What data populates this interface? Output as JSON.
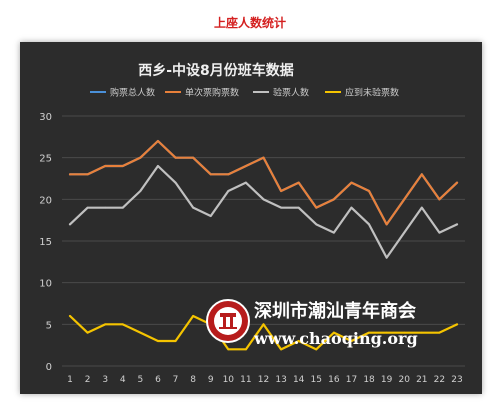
{
  "page": {
    "title": "上座人数统计"
  },
  "chart_data": {
    "type": "line",
    "title": "西乡-中设8月份班车数据",
    "xlabel": "",
    "ylabel": "",
    "categories": [
      1,
      2,
      3,
      4,
      5,
      6,
      7,
      8,
      9,
      10,
      11,
      12,
      13,
      14,
      15,
      16,
      17,
      18,
      19,
      20,
      21,
      22,
      23
    ],
    "ylim": [
      0,
      30
    ],
    "yticks": [
      0,
      5,
      10,
      15,
      20,
      25,
      30
    ],
    "grid": true,
    "legend_position": "top",
    "series": [
      {
        "name": "购票总人数",
        "color": "#4a90d9",
        "values": [
          23,
          23,
          24,
          24,
          25,
          27,
          25,
          25,
          23,
          23,
          24,
          25,
          21,
          22,
          19,
          20,
          22,
          21,
          17,
          20,
          23,
          20,
          22
        ]
      },
      {
        "name": "单次票购票数",
        "color": "#e8803a",
        "values": [
          23,
          23,
          24,
          24,
          25,
          27,
          25,
          25,
          23,
          23,
          24,
          25,
          21,
          22,
          19,
          20,
          22,
          21,
          17,
          20,
          23,
          20,
          22
        ]
      },
      {
        "name": "验票人数",
        "color": "#c0c0c0",
        "values": [
          17,
          19,
          19,
          19,
          21,
          24,
          22,
          19,
          18,
          21,
          22,
          20,
          19,
          19,
          17,
          16,
          19,
          17,
          13,
          16,
          19,
          16,
          17
        ]
      },
      {
        "name": "应到未验票数",
        "color": "#f5c400",
        "values": [
          6,
          4,
          5,
          5,
          4,
          3,
          3,
          6,
          5,
          2,
          2,
          5,
          2,
          3,
          2,
          4,
          3,
          4,
          4,
          4,
          4,
          4,
          5
        ]
      }
    ]
  },
  "watermark": {
    "name": "深圳市潮汕青年商会",
    "url": "www.chaoqing.org",
    "seal_text": "深圳市潮汕青年商会 SHENZHEN CHAOSHAN JUNIOR CHAMBER OF COMMERCE"
  }
}
